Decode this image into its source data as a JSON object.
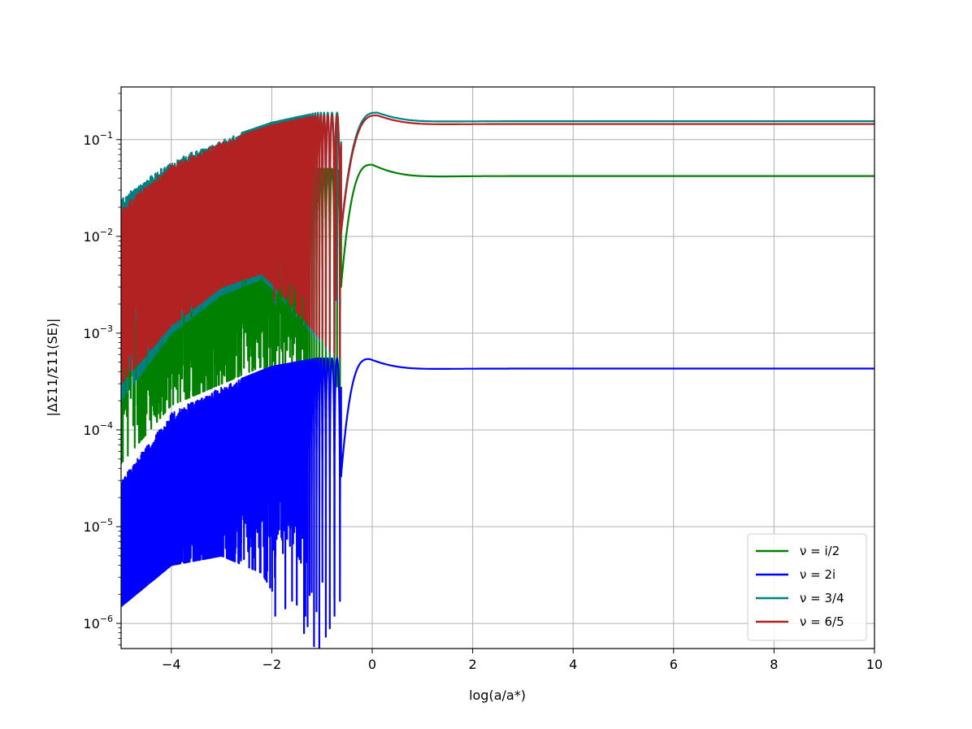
{
  "chart_data": {
    "type": "line",
    "title": "",
    "xlabel": "log(a/a*)",
    "ylabel": "|ΔΣ11/Σ11(SE)|",
    "xlim": [
      -5,
      10
    ],
    "ylim": [
      5.5e-07,
      0.35
    ],
    "yscale": "log",
    "grid": true,
    "legend_position": "lower-right",
    "x_ticks": [
      -4,
      -2,
      0,
      2,
      4,
      6,
      8,
      10
    ],
    "x_tick_labels": [
      "−4",
      "−2",
      "0",
      "2",
      "4",
      "6",
      "8",
      "10"
    ],
    "y_ticks": [
      1e-06,
      1e-05,
      0.0001,
      0.001,
      0.01,
      0.1
    ],
    "y_tick_labels": [
      {
        "base": "10",
        "exp": "−6"
      },
      {
        "base": "10",
        "exp": "−5"
      },
      {
        "base": "10",
        "exp": "−4"
      },
      {
        "base": "10",
        "exp": "−3"
      },
      {
        "base": "10",
        "exp": "−2"
      },
      {
        "base": "10",
        "exp": "−1"
      }
    ],
    "series": [
      {
        "name": "ν = i/2",
        "color": "#008000",
        "plateau": 0.042,
        "peak": {
          "x": 0.0,
          "y": 0.055
        },
        "envelope": [
          [
            -5,
            0.012
          ],
          [
            -4,
            0.018
          ],
          [
            -3,
            0.028
          ],
          [
            -2,
            0.04
          ],
          [
            -1.1,
            0.05
          ]
        ],
        "trough_floor": [
          [
            -5,
            4.5e-05
          ],
          [
            -4,
            0.00018
          ],
          [
            -3,
            0.0003
          ],
          [
            -2,
            0.0005
          ],
          [
            -1,
            0.0007
          ]
        ],
        "zeros": [
          -0.7,
          -1.33,
          -1.85
        ]
      },
      {
        "name": "ν = 2i",
        "color": "#0000ff",
        "plateau": 0.00043,
        "peak": {
          "x": -0.05,
          "y": 0.00054
        },
        "envelope": [
          [
            -5,
            3e-05
          ],
          [
            -4,
            0.00015
          ],
          [
            -3,
            0.00028
          ],
          [
            -2,
            0.00045
          ],
          [
            -1.1,
            0.00055
          ]
        ],
        "trough_floor": [
          [
            -5,
            1.5e-06
          ],
          [
            -4,
            4e-06
          ],
          [
            -3,
            5e-06
          ],
          [
            -2,
            3e-06
          ],
          [
            -1,
            3e-06
          ]
        ],
        "zeros": [
          -0.75,
          -1.33,
          -1.93
        ]
      },
      {
        "name": "ν = 3/4",
        "color": "#008080",
        "plateau": 0.155,
        "peak": {
          "x": 0.1,
          "y": 0.19
        },
        "envelope": [
          [
            -5,
            0.025
          ],
          [
            -4,
            0.06
          ],
          [
            -3,
            0.1
          ],
          [
            -2,
            0.15
          ],
          [
            -1.1,
            0.19
          ]
        ],
        "trough_floor": [
          [
            -5,
            0.0002
          ],
          [
            -4,
            0.001
          ],
          [
            -3,
            0.0025
          ],
          [
            -2,
            0.004
          ],
          [
            -1,
            0.005
          ]
        ],
        "zeros": [
          -0.7,
          -1.33,
          -1.93
        ]
      },
      {
        "name": "ν = 6/5",
        "color": "#b22222",
        "plateau": 0.145,
        "peak": {
          "x": 0.1,
          "y": 0.178
        },
        "envelope": [
          [
            -5,
            0.02
          ],
          [
            -4,
            0.055
          ],
          [
            -3,
            0.095
          ],
          [
            -2,
            0.14
          ],
          [
            -1.1,
            0.178
          ]
        ],
        "trough_floor": [
          [
            -5,
            0.0003
          ],
          [
            -4,
            0.0012
          ],
          [
            -3,
            0.003
          ],
          [
            -2,
            0.0045
          ],
          [
            -1,
            0.0055
          ]
        ],
        "zeros": [
          -0.72,
          -1.33,
          -1.95
        ]
      }
    ]
  }
}
